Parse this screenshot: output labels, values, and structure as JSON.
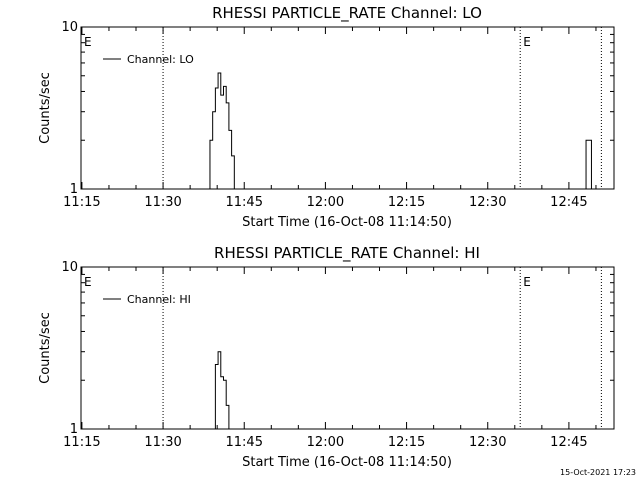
{
  "footer_timestamp": "15-Oct-2021 17:23",
  "chart_data": [
    {
      "type": "line",
      "title": "RHESSI PARTICLE_RATE Channel: LO",
      "xlabel": "Start Time (16-Oct-08 11:14:50)",
      "ylabel": "Counts/sec",
      "xlim": [
        "11:14:50",
        "12:53:20"
      ],
      "x_ticks": [
        "11:15",
        "11:30",
        "11:45",
        "12:00",
        "12:15",
        "12:30",
        "12:45"
      ],
      "y_scale": "log",
      "ylim": [
        1,
        10
      ],
      "y_ticks": [
        "1",
        "10"
      ],
      "legend": {
        "position": "top-left",
        "entries": [
          "Channel: LO"
        ]
      },
      "event_markers": [
        {
          "time": "11:14:50",
          "label": "E"
        },
        {
          "time": "11:30:00",
          "label": ""
        },
        {
          "time": "12:36:00",
          "label": "E"
        },
        {
          "time": "12:51:00",
          "label": ""
        }
      ],
      "series": [
        {
          "name": "Channel: LO",
          "x": [
            "11:38:10",
            "11:38:40",
            "11:39:10",
            "11:39:40",
            "11:40:10",
            "11:40:40",
            "11:41:10",
            "11:41:40",
            "11:42:10",
            "11:42:40",
            "11:43:10",
            "12:47:40",
            "12:48:10",
            "12:48:40",
            "12:49:10"
          ],
          "y": [
            1,
            2.0,
            3.0,
            4.2,
            5.2,
            3.8,
            4.3,
            3.4,
            2.3,
            1.6,
            1,
            1,
            2.0,
            2.0,
            1
          ],
          "segments": [
            [
              0,
              10
            ],
            [
              11,
              14
            ]
          ]
        }
      ]
    },
    {
      "type": "line",
      "title": "RHESSI PARTICLE_RATE Channel: HI",
      "xlabel": "Start Time (16-Oct-08 11:14:50)",
      "ylabel": "Counts/sec",
      "xlim": [
        "11:14:50",
        "12:53:20"
      ],
      "x_ticks": [
        "11:15",
        "11:30",
        "11:45",
        "12:00",
        "12:15",
        "12:30",
        "12:45"
      ],
      "y_scale": "log",
      "ylim": [
        1,
        10
      ],
      "y_ticks": [
        "1",
        "10"
      ],
      "legend": {
        "position": "top-left",
        "entries": [
          "Channel: HI"
        ]
      },
      "event_markers": [
        {
          "time": "11:14:50",
          "label": "E"
        },
        {
          "time": "11:30:00",
          "label": ""
        },
        {
          "time": "12:36:00",
          "label": "E"
        },
        {
          "time": "12:51:00",
          "label": ""
        }
      ],
      "series": [
        {
          "name": "Channel: HI",
          "x": [
            "11:39:10",
            "11:39:40",
            "11:40:10",
            "11:40:40",
            "11:41:10",
            "11:41:40",
            "11:42:10"
          ],
          "y": [
            1,
            2.5,
            3.0,
            2.1,
            2.0,
            1.4,
            1
          ],
          "segments": [
            [
              0,
              6
            ]
          ]
        }
      ]
    }
  ]
}
